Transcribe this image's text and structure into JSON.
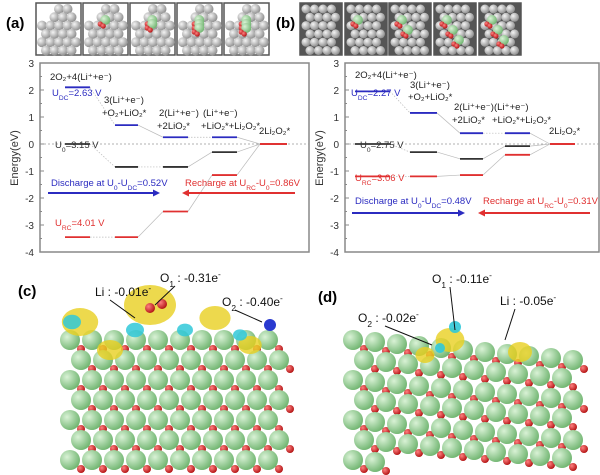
{
  "panel_labels": [
    "(a)",
    "(b)",
    "(c)",
    "(d)"
  ],
  "colors": {
    "discharge": "#2b2bc0",
    "recharge": "#e03030",
    "equilibrium": "#333333",
    "li": "#8fd18f",
    "o": "#d42020",
    "host": "#b8b8b8",
    "charge_gain": "#e8d020",
    "charge_loss": "#30c8d8"
  },
  "chart_data": [
    {
      "type": "line",
      "panel": "(a)",
      "ylabel": "Energy(eV)",
      "ylim": [
        -4,
        3
      ],
      "yticks": [
        "3",
        "2",
        "1",
        "0",
        "-1",
        "-2",
        "-3",
        "-4"
      ],
      "states": [
        "2O₂+4(Li⁺+e⁻)",
        "3(Li⁺+e⁻)+O₂+LiO₂*",
        "2(Li⁺+e⁻)+2LiO₂*",
        "(Li⁺+e⁻)+LiO₂*+Li₂O₂*",
        "2Li₂O₂*"
      ],
      "series": [
        {
          "name": "U_DC=2.63 V",
          "color": "#2b2bc0",
          "values": [
            2.1,
            0.7,
            0.25,
            0.25,
            0
          ]
        },
        {
          "name": "U_0=3.15 V",
          "color": "#333333",
          "values": [
            0,
            -0.85,
            -0.85,
            -0.3,
            0
          ]
        },
        {
          "name": "U_RC=4.01 V",
          "color": "#e03030",
          "values": [
            -3.45,
            -3.45,
            -2.5,
            -1.15,
            0
          ]
        }
      ],
      "annotations": [
        {
          "segs": [
            {
              "t": "2O"
            },
            {
              "t": "2",
              "sub": true
            },
            {
              "t": "+4(Li"
            },
            {
              "t": "+",
              "sup": true
            },
            {
              "t": "+e"
            },
            {
              "t": "-",
              "sup": true
            },
            {
              "t": ")"
            }
          ],
          "color": "#222"
        },
        {
          "segs": [
            {
              "t": "U"
            },
            {
              "t": "DC",
              "sub": true
            },
            {
              "t": "=2.63 V"
            }
          ],
          "color": "#2b2bc0"
        },
        {
          "segs": [
            {
              "t": "3(Li"
            },
            {
              "t": "+",
              "sup": true
            },
            {
              "t": "+e"
            },
            {
              "t": "-",
              "sup": true
            },
            {
              "t": ")"
            }
          ],
          "color": "#222"
        },
        {
          "segs": [
            {
              "t": "+O"
            },
            {
              "t": "2",
              "sub": true
            },
            {
              "t": "+LiO"
            },
            {
              "t": "2",
              "sub": true
            },
            {
              "t": "*",
              "sup": true
            }
          ],
          "color": "#222"
        },
        {
          "segs": [
            {
              "t": "2(Li"
            },
            {
              "t": "+",
              "sup": true
            },
            {
              "t": "+e"
            },
            {
              "t": "-",
              "sup": true
            },
            {
              "t": ")"
            }
          ],
          "color": "#222"
        },
        {
          "segs": [
            {
              "t": "+ 2LiO"
            },
            {
              "t": "2",
              "sub": true
            },
            {
              "t": "*",
              "sup": true
            }
          ],
          "color": "#222"
        },
        {
          "segs": [
            {
              "t": "(Li"
            },
            {
              "t": "+",
              "sup": true
            },
            {
              "t": "+e"
            },
            {
              "t": "-",
              "sup": true
            },
            {
              "t": ")"
            }
          ],
          "color": "#222"
        },
        {
          "segs": [
            {
              "t": "+LiO"
            },
            {
              "t": "2",
              "sub": true
            },
            {
              "t": "*",
              "sup": true
            },
            {
              "t": "+Li"
            },
            {
              "t": "2",
              "sub": true
            },
            {
              "t": "O"
            },
            {
              "t": "2",
              "sub": true
            },
            {
              "t": "*",
              "sup": true
            }
          ],
          "color": "#222"
        },
        {
          "segs": [
            {
              "t": "2Li"
            },
            {
              "t": "2",
              "sub": true
            },
            {
              "t": "O"
            },
            {
              "t": "2",
              "sub": true
            },
            {
              "t": "*",
              "sup": true
            }
          ],
          "color": "#222"
        },
        {
          "segs": [
            {
              "t": "U"
            },
            {
              "t": "0",
              "sub": true
            },
            {
              "t": "=3.15 V"
            }
          ],
          "color": "#333"
        },
        {
          "segs": [
            {
              "t": "Discharge at U"
            },
            {
              "t": "0",
              "sub": true
            },
            {
              "t": "-U"
            },
            {
              "t": "DC",
              "sub": true
            },
            {
              "t": "=0.52V"
            }
          ],
          "color": "#2b2bc0"
        },
        {
          "segs": [
            {
              "t": "Recharge at U"
            },
            {
              "t": "RC",
              "sub": true
            },
            {
              "t": "-U"
            },
            {
              "t": "0",
              "sub": true
            },
            {
              "t": "=0.86V"
            }
          ],
          "color": "#e03030"
        },
        {
          "segs": [
            {
              "t": "U"
            },
            {
              "t": "RC",
              "sub": true
            },
            {
              "t": "=4.01 V"
            }
          ],
          "color": "#e03030"
        }
      ]
    },
    {
      "type": "line",
      "panel": "(b)",
      "ylabel": "Energy(eV)",
      "ylim": [
        -4,
        3
      ],
      "yticks": [
        "3",
        "2",
        "1",
        "0",
        "-1",
        "-2",
        "-3",
        "-4"
      ],
      "states": [
        "2O₂+4(Li⁺+e⁻)",
        "3(Li⁺+e⁻)+O₂+LiO₂*",
        "2(Li⁺+e⁻)+2LiO₂*",
        "(Li⁺+e⁻)+LiO₂*+Li₂O₂*",
        "2Li₂O₂*"
      ],
      "series": [
        {
          "name": "U_DC=2.27 V",
          "color": "#2b2bc0",
          "values": [
            1.95,
            1.15,
            0.4,
            0.4,
            0
          ]
        },
        {
          "name": "U_0=2.75 V",
          "color": "#333333",
          "values": [
            0,
            -0.3,
            -0.55,
            -0.08,
            0
          ]
        },
        {
          "name": "U_RC=3.06 V",
          "color": "#e03030",
          "values": [
            -1.2,
            -1.2,
            -1.15,
            -0.4,
            0
          ]
        }
      ],
      "annotations": [
        {
          "segs": [
            {
              "t": "2O"
            },
            {
              "t": "2",
              "sub": true
            },
            {
              "t": "+4(Li"
            },
            {
              "t": "+",
              "sup": true
            },
            {
              "t": "+e"
            },
            {
              "t": "-",
              "sup": true
            },
            {
              "t": ")"
            }
          ],
          "color": "#222"
        },
        {
          "segs": [
            {
              "t": "U"
            },
            {
              "t": "DC",
              "sub": true
            },
            {
              "t": "=2.27 V"
            }
          ],
          "color": "#2b2bc0"
        },
        {
          "segs": [
            {
              "t": "3(Li"
            },
            {
              "t": "+",
              "sup": true
            },
            {
              "t": "+e"
            },
            {
              "t": "-",
              "sup": true
            },
            {
              "t": ")"
            }
          ],
          "color": "#222"
        },
        {
          "segs": [
            {
              "t": "+O"
            },
            {
              "t": "2",
              "sub": true
            },
            {
              "t": "+LiO"
            },
            {
              "t": "2",
              "sub": true
            },
            {
              "t": "*",
              "sup": true
            }
          ],
          "color": "#222"
        },
        {
          "segs": [
            {
              "t": "2(Li"
            },
            {
              "t": "+",
              "sup": true
            },
            {
              "t": "+e"
            },
            {
              "t": "-",
              "sup": true
            },
            {
              "t": ")"
            }
          ],
          "color": "#222"
        },
        {
          "segs": [
            {
              "t": "+ 2LiO"
            },
            {
              "t": "2",
              "sub": true
            },
            {
              "t": "*",
              "sup": true
            }
          ],
          "color": "#222"
        },
        {
          "segs": [
            {
              "t": "(Li"
            },
            {
              "t": "+",
              "sup": true
            },
            {
              "t": "+e"
            },
            {
              "t": "-",
              "sup": true
            },
            {
              "t": ")"
            }
          ],
          "color": "#222"
        },
        {
          "segs": [
            {
              "t": "+LiO"
            },
            {
              "t": "2",
              "sub": true
            },
            {
              "t": "*",
              "sup": true
            },
            {
              "t": "+Li"
            },
            {
              "t": "2",
              "sub": true
            },
            {
              "t": "O"
            },
            {
              "t": "2",
              "sub": true
            },
            {
              "t": "*",
              "sup": true
            }
          ],
          "color": "#222"
        },
        {
          "segs": [
            {
              "t": "2Li"
            },
            {
              "t": "2",
              "sub": true
            },
            {
              "t": "O"
            },
            {
              "t": "2",
              "sub": true
            },
            {
              "t": "*",
              "sup": true
            }
          ],
          "color": "#222"
        },
        {
          "segs": [
            {
              "t": "U"
            },
            {
              "t": "0",
              "sub": true
            },
            {
              "t": "=2.75 V"
            }
          ],
          "color": "#333"
        },
        {
          "segs": [
            {
              "t": "Discharge at U"
            },
            {
              "t": "0",
              "sub": true
            },
            {
              "t": "-U"
            },
            {
              "t": "DC",
              "sub": true
            },
            {
              "t": "=0.48V"
            }
          ],
          "color": "#2b2bc0"
        },
        {
          "segs": [
            {
              "t": "Recharge at U"
            },
            {
              "t": "RC",
              "sub": true
            },
            {
              "t": "-U"
            },
            {
              "t": "0",
              "sub": true
            },
            {
              "t": "=0.31V"
            }
          ],
          "color": "#e03030"
        },
        {
          "segs": [
            {
              "t": "U"
            },
            {
              "t": "RC",
              "sub": true
            },
            {
              "t": "=3.06 V"
            }
          ],
          "color": "#e03030"
        }
      ]
    }
  ],
  "charge_labels": {
    "c": [
      {
        "segs": [
          {
            "t": "Li : -0.01e"
          },
          {
            "t": "-",
            "sup": true
          }
        ]
      },
      {
        "segs": [
          {
            "t": "O"
          },
          {
            "t": "1",
            "sub": true
          },
          {
            "t": " : -0.31e"
          },
          {
            "t": "-",
            "sup": true
          }
        ]
      },
      {
        "segs": [
          {
            "t": "O"
          },
          {
            "t": "2",
            "sub": true
          },
          {
            "t": " : -0.40e"
          },
          {
            "t": "-",
            "sup": true
          }
        ]
      }
    ],
    "d": [
      {
        "segs": [
          {
            "t": "O"
          },
          {
            "t": "1",
            "sub": true
          },
          {
            "t": " : -0.11e"
          },
          {
            "t": "-",
            "sup": true
          }
        ]
      },
      {
        "segs": [
          {
            "t": "Li : -0.05e"
          },
          {
            "t": "-",
            "sup": true
          }
        ]
      },
      {
        "segs": [
          {
            "t": "O"
          },
          {
            "t": "2",
            "sub": true
          },
          {
            "t": " : -0.02e"
          },
          {
            "t": "-",
            "sup": true
          }
        ]
      }
    ]
  }
}
